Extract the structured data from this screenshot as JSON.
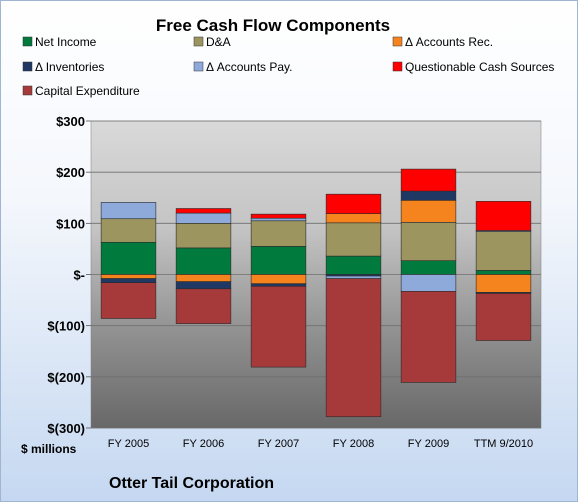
{
  "chart_data": {
    "type": "bar",
    "stacked": true,
    "title": "Free Cash Flow Components",
    "ylabel": "$ millions",
    "footer": "Otter Tail Corporation",
    "categories": [
      "FY 2005",
      "FY 2006",
      "FY 2007",
      "FY 2008",
      "FY 2009",
      "TTM 9/2010"
    ],
    "y_ticks": [
      {
        "value": 300,
        "label": "$300"
      },
      {
        "value": 200,
        "label": "$200"
      },
      {
        "value": 100,
        "label": "$100"
      },
      {
        "value": 0,
        "label": "$-"
      },
      {
        "value": -100,
        "label": "$(100)"
      },
      {
        "value": -200,
        "label": "$(200)"
      },
      {
        "value": -300,
        "label": "$(300)"
      }
    ],
    "ylim": [
      -300,
      300
    ],
    "legend_placement": "top",
    "grid": true,
    "series": [
      {
        "name": "Net Income",
        "color": "#007a3d",
        "values": [
          63,
          52,
          55,
          36,
          27,
          8
        ]
      },
      {
        "name": "D&A",
        "color": "#9c9560",
        "values": [
          46,
          48,
          50,
          65,
          75,
          76
        ]
      },
      {
        "name": "Δ Accounts Rec.",
        "color": "#f5841f",
        "values": [
          -8,
          -14,
          -18,
          18,
          43,
          -35
        ]
      },
      {
        "name": "Δ Inventories",
        "color": "#1f3864",
        "values": [
          -8,
          -14,
          -5,
          -3,
          18,
          -2
        ]
      },
      {
        "name": "Δ Accounts Pay.",
        "color": "#8eaadb",
        "values": [
          32,
          20,
          5,
          -5,
          -33,
          2
        ]
      },
      {
        "name": "Questionable Cash Sources",
        "color": "#ff0000",
        "values": [
          0,
          9,
          8,
          38,
          43,
          57
        ]
      },
      {
        "name": "Capital Expenditure",
        "color": "#a63a3a",
        "values": [
          -70,
          -68,
          -158,
          -270,
          -178,
          -92
        ]
      }
    ]
  }
}
